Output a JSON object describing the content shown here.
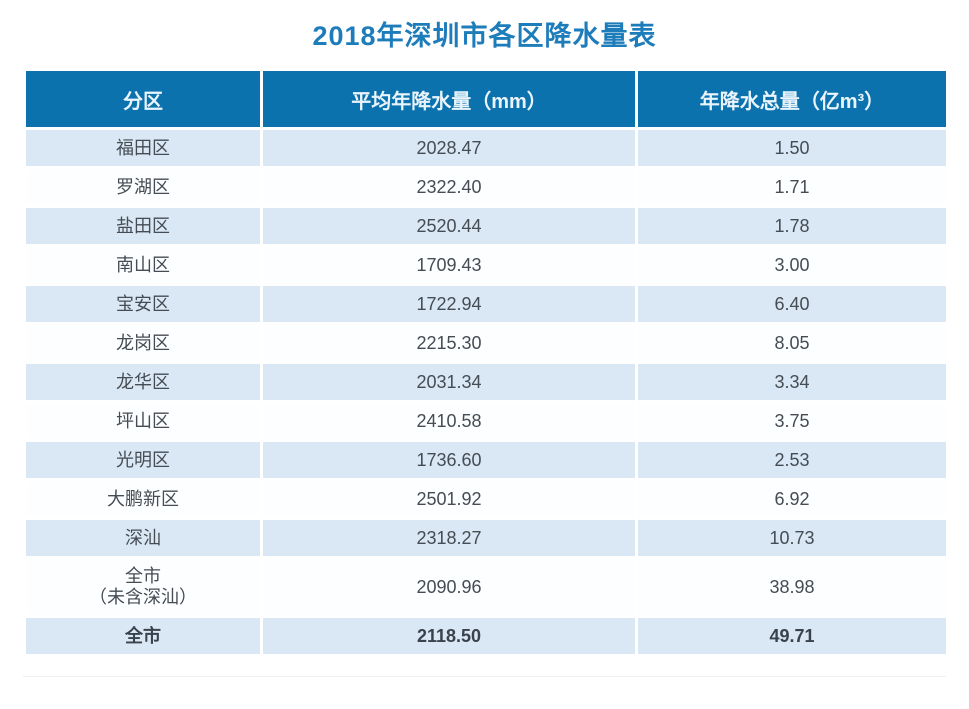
{
  "title": "2018年深圳市各区降水量表",
  "colors": {
    "header_bg": "#0b72ad",
    "header_text": "#e9f4fc",
    "row_light_bg": "#d9e8f4",
    "row_white_bg": "#fdfeff",
    "body_text": "#454c54",
    "title_text": "#1d7cba",
    "grid_white": "#ffffff"
  },
  "chart_data": {
    "type": "table",
    "title": "2018年深圳市各区降水量表",
    "columns": [
      "分区",
      "平均年降水量（mm）",
      "年降水总量（亿m³）"
    ],
    "rows": [
      [
        "福田区",
        "2028.47",
        "1.50"
      ],
      [
        "罗湖区",
        "2322.40",
        "1.71"
      ],
      [
        "盐田区",
        "2520.44",
        "1.78"
      ],
      [
        "南山区",
        "1709.43",
        "3.00"
      ],
      [
        "宝安区",
        "1722.94",
        "6.40"
      ],
      [
        "龙岗区",
        "2215.30",
        "8.05"
      ],
      [
        "龙华区",
        "2031.34",
        "3.34"
      ],
      [
        "坪山区",
        "2410.58",
        "3.75"
      ],
      [
        "光明区",
        "1736.60",
        "2.53"
      ],
      [
        "大鹏新区",
        "2501.92",
        "6.92"
      ],
      [
        "深汕",
        "2318.27",
        "10.73"
      ],
      [
        "全市\n（未含深汕）",
        "2090.96",
        "38.98"
      ],
      [
        "全市",
        "2118.50",
        "49.71"
      ]
    ]
  }
}
